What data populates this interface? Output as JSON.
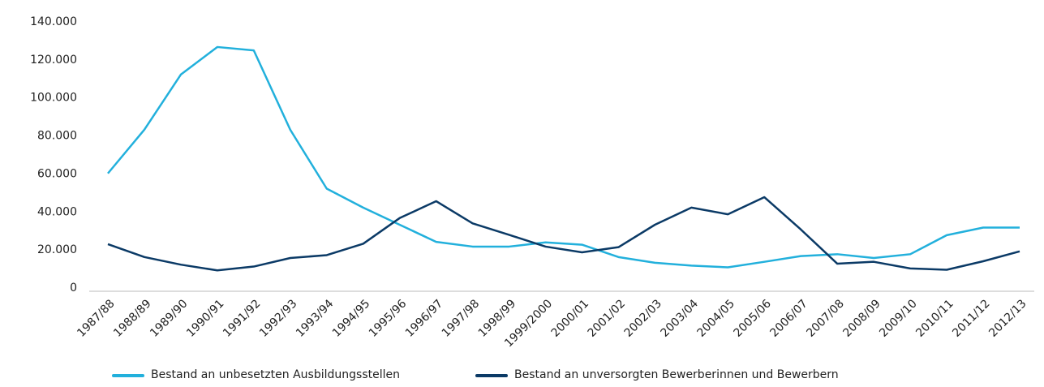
{
  "chart_data": {
    "type": "line",
    "categories": [
      "1987/88",
      "1988/89",
      "1989/90",
      "1990/91",
      "1991/92",
      "1992/93",
      "1993/94",
      "1994/95",
      "1995/96",
      "1996/97",
      "1997/98",
      "1998/99",
      "1999/2000",
      "2000/01",
      "2001/02",
      "2002/03",
      "2003/04",
      "2004/05",
      "2005/06",
      "2006/07",
      "2007/08",
      "2008/09",
      "2009/10",
      "2010/11",
      "2011/12",
      "2012/13"
    ],
    "series": [
      {
        "name": "Bestand an unbesetzten Ausbildungsstellen",
        "color": "#22b0dc",
        "values": [
          62000,
          85000,
          114000,
          128500,
          126700,
          85000,
          54000,
          44000,
          35000,
          26000,
          23500,
          23500,
          25700,
          24500,
          18000,
          15000,
          13500,
          12600,
          15500,
          18500,
          19500,
          17500,
          19500,
          29500,
          33500,
          33500
        ]
      },
      {
        "name": "Bestand an unversorgten Bewerberinnen und Bewerbern",
        "color": "#0b3a66",
        "values": [
          24800,
          18000,
          14000,
          11000,
          13000,
          17500,
          19000,
          25000,
          38500,
          47400,
          35700,
          29700,
          23500,
          20500,
          23200,
          35000,
          44000,
          40500,
          49500,
          32500,
          14500,
          15500,
          12000,
          11300,
          15800,
          21000
        ]
      }
    ],
    "ylim": [
      0,
      140000
    ],
    "yticks": [
      0,
      {
        "value": 20000,
        "label": "20.000"
      },
      {
        "value": 40000,
        "label": "40.000"
      },
      {
        "value": 60000,
        "label": "60.000"
      },
      {
        "value": 80000,
        "label": "80.000"
      },
      {
        "value": 100000,
        "label": "100.000"
      },
      {
        "value": 120000,
        "label": "120.000"
      },
      {
        "value": 140000,
        "label": "140.000"
      }
    ],
    "grid": false,
    "legend": "bottom"
  }
}
